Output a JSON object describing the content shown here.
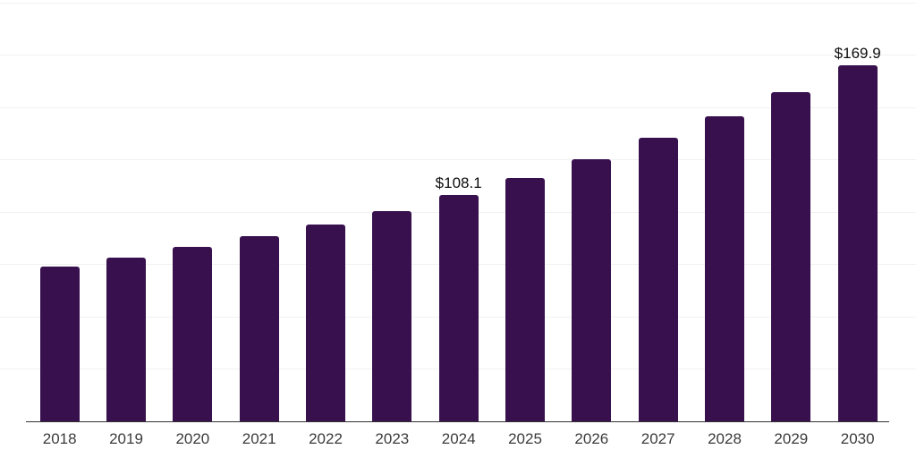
{
  "chart_data": {
    "type": "bar",
    "title": "",
    "xlabel": "",
    "ylabel": "",
    "categories": [
      "2018",
      "2019",
      "2020",
      "2021",
      "2022",
      "2023",
      "2024",
      "2025",
      "2026",
      "2027",
      "2028",
      "2029",
      "2030"
    ],
    "values": [
      73.8,
      78.0,
      83.1,
      88.3,
      94.0,
      100.3,
      108.1,
      116.2,
      125.2,
      135.5,
      145.7,
      157.0,
      169.9
    ],
    "point_labels": {
      "2024": "$108.1",
      "2030": "$169.9"
    },
    "ylim": [
      0,
      200
    ],
    "gridline_step": 25,
    "grid": true,
    "legend_position": "none",
    "y_axis_tick_labels_visible": false,
    "colors": {
      "bar": "#37104D",
      "gridline": "#f1f1f1",
      "axis_line": "#333333",
      "x_tick_label": "#3b3b3b",
      "value_label": "#0d0d0d",
      "background": "#ffffff"
    }
  }
}
